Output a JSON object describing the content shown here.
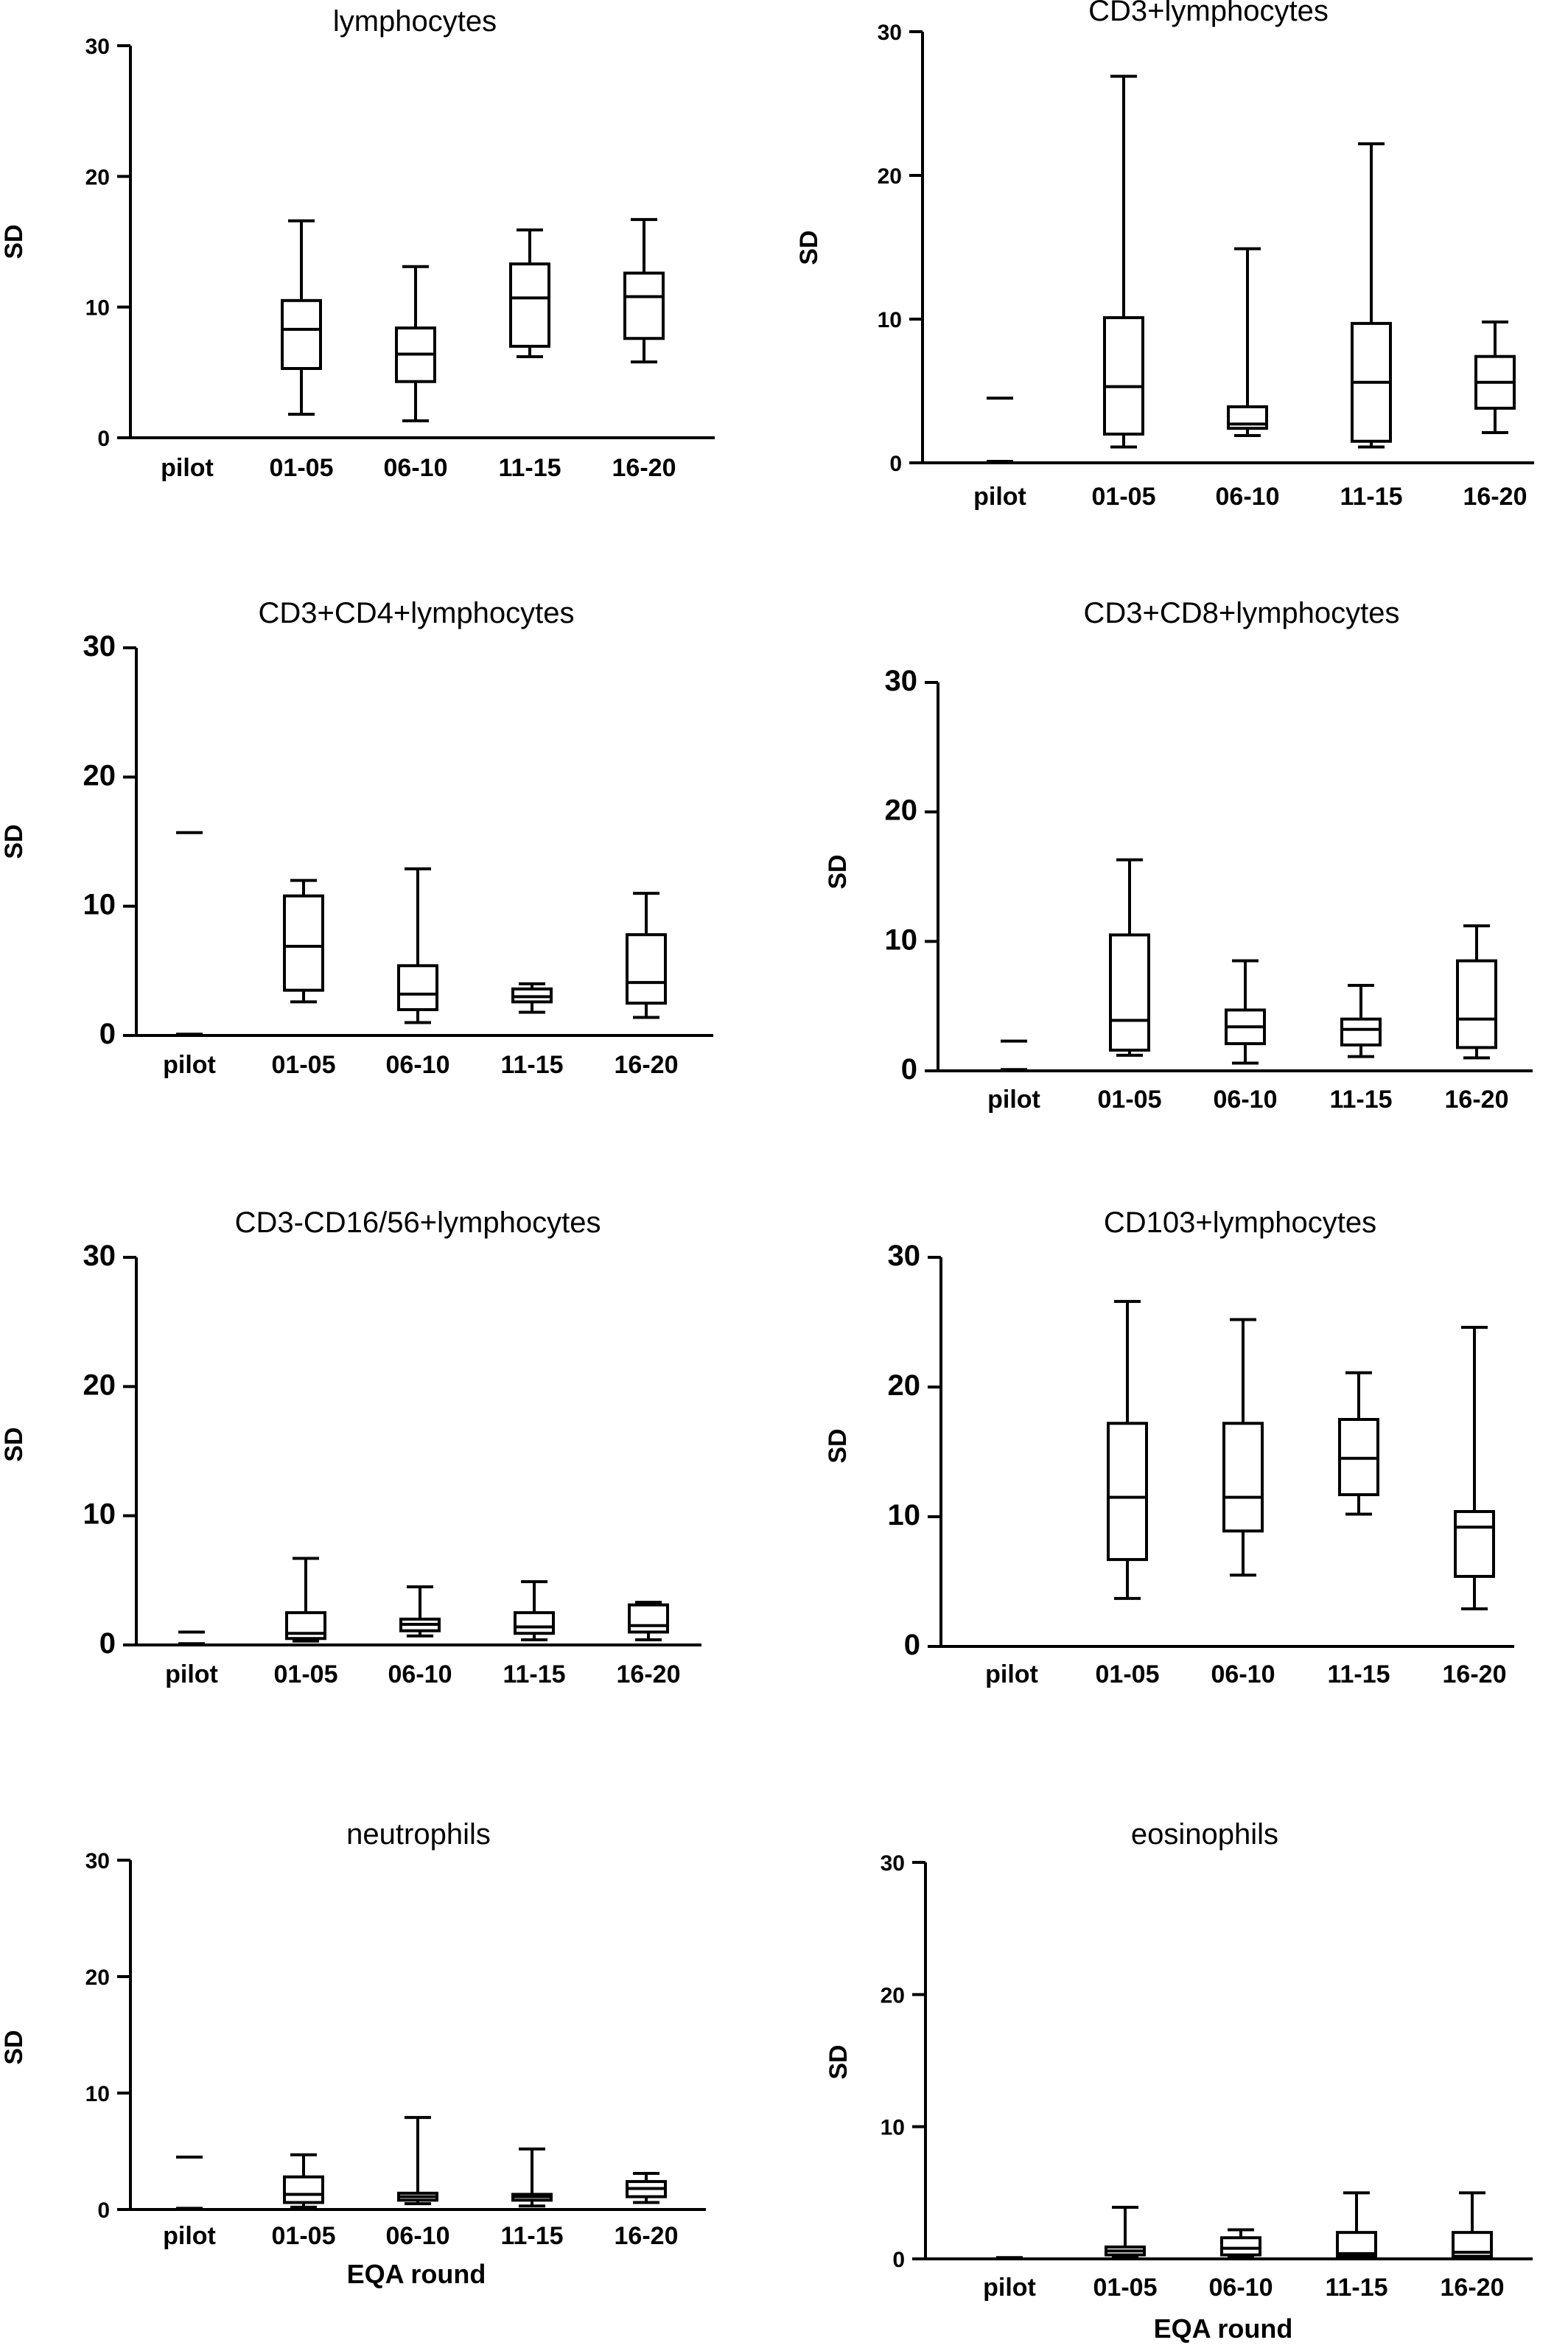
{
  "chart_data": [
    {
      "type": "box",
      "title": "lymphocytes",
      "ylabel": "SD",
      "xlabel": "",
      "ylim": [
        0,
        30
      ],
      "yticks": [
        "0",
        "10",
        "20",
        "30"
      ],
      "categories": [
        "pilot",
        "01-05",
        "06-10",
        "11-15",
        "16-20"
      ],
      "boxes": [
        null,
        {
          "min": 1.8,
          "q1": 5.3,
          "median": 8.3,
          "q3": 10.5,
          "max": 16.6
        },
        {
          "min": 1.3,
          "q1": 4.3,
          "median": 6.4,
          "q3": 8.4,
          "max": 13.1
        },
        {
          "min": 6.2,
          "q1": 7.0,
          "median": 10.7,
          "q3": 13.3,
          "max": 15.9
        },
        {
          "min": 5.8,
          "q1": 7.6,
          "median": 10.8,
          "q3": 12.6,
          "max": 16.7
        }
      ]
    },
    {
      "type": "box",
      "title": "CD3+lymphocytes",
      "ylabel": "SD",
      "xlabel": "",
      "ylim": [
        0,
        30
      ],
      "yticks": [
        "0",
        "10",
        "20",
        "30"
      ],
      "categories": [
        "pilot",
        "01-05",
        "06-10",
        "11-15",
        "16-20"
      ],
      "boxes": [
        {
          "min": 0.1,
          "q1": 0.1,
          "median": 0.1,
          "q3": 4.5,
          "max": 4.5
        },
        {
          "min": 1.1,
          "q1": 2.0,
          "median": 5.3,
          "q3": 10.1,
          "max": 26.9
        },
        {
          "min": 1.9,
          "q1": 2.4,
          "median": 2.7,
          "q3": 3.9,
          "max": 14.9
        },
        {
          "min": 1.1,
          "q1": 1.5,
          "median": 5.6,
          "q3": 9.7,
          "max": 22.2
        },
        {
          "min": 2.1,
          "q1": 3.8,
          "median": 5.6,
          "q3": 7.4,
          "max": 9.8
        }
      ]
    },
    {
      "type": "box",
      "title": "CD3+CD4+lymphocytes",
      "ylabel": "SD",
      "xlabel": "",
      "ylim": [
        0,
        30
      ],
      "yticks": [
        "0",
        "10",
        "20",
        "30"
      ],
      "categories": [
        "pilot",
        "01-05",
        "06-10",
        "11-15",
        "16-20"
      ],
      "boxes": [
        {
          "min": 0.1,
          "q1": 0.1,
          "median": 0.1,
          "q3": 15.7,
          "max": 15.7
        },
        {
          "min": 2.6,
          "q1": 3.5,
          "median": 6.9,
          "q3": 10.8,
          "max": 12.0
        },
        {
          "min": 1.0,
          "q1": 2.0,
          "median": 3.2,
          "q3": 5.4,
          "max": 12.9
        },
        {
          "min": 1.8,
          "q1": 2.6,
          "median": 3.0,
          "q3": 3.6,
          "max": 4.0
        },
        {
          "min": 1.4,
          "q1": 2.5,
          "median": 4.1,
          "q3": 7.8,
          "max": 11.0
        }
      ]
    },
    {
      "type": "box",
      "title": "CD3+CD8+lymphocytes",
      "ylabel": "SD",
      "xlabel": "",
      "ylim": [
        0,
        30
      ],
      "yticks": [
        "0",
        "10",
        "20",
        "30"
      ],
      "categories": [
        "pilot",
        "01-05",
        "06-10",
        "11-15",
        "16-20"
      ],
      "boxes": [
        {
          "min": 0.1,
          "q1": 0.1,
          "median": 0.1,
          "q3": 2.3,
          "max": 2.3
        },
        {
          "min": 1.2,
          "q1": 1.6,
          "median": 3.9,
          "q3": 10.5,
          "max": 16.3
        },
        {
          "min": 0.6,
          "q1": 2.1,
          "median": 3.4,
          "q3": 4.7,
          "max": 8.5
        },
        {
          "min": 1.1,
          "q1": 2.0,
          "median": 3.2,
          "q3": 4.0,
          "max": 6.6
        },
        {
          "min": 1.0,
          "q1": 1.8,
          "median": 4.0,
          "q3": 8.5,
          "max": 11.2
        }
      ]
    },
    {
      "type": "box",
      "title": "CD3-CD16/56+lymphocytes",
      "ylabel": "SD",
      "xlabel": "",
      "ylim": [
        0,
        30
      ],
      "yticks": [
        "0",
        "10",
        "20",
        "30"
      ],
      "categories": [
        "pilot",
        "01-05",
        "06-10",
        "11-15",
        "16-20"
      ],
      "boxes": [
        {
          "min": 0.1,
          "q1": 0.1,
          "median": 0.1,
          "q3": 1.0,
          "max": 1.0
        },
        {
          "min": 0.3,
          "q1": 0.5,
          "median": 0.9,
          "q3": 2.5,
          "max": 6.7
        },
        {
          "min": 0.7,
          "q1": 1.1,
          "median": 1.6,
          "q3": 2.0,
          "max": 4.5
        },
        {
          "min": 0.4,
          "q1": 0.9,
          "median": 1.4,
          "q3": 2.5,
          "max": 4.9
        },
        {
          "min": 0.4,
          "q1": 1.0,
          "median": 1.5,
          "q3": 3.1,
          "max": 3.3
        }
      ]
    },
    {
      "type": "box",
      "title": "CD103+lymphocytes",
      "ylabel": "SD",
      "xlabel": "",
      "ylim": [
        0,
        30
      ],
      "yticks": [
        "0",
        "10",
        "20",
        "30"
      ],
      "categories": [
        "pilot",
        "01-05",
        "06-10",
        "11-15",
        "16-20"
      ],
      "boxes": [
        null,
        {
          "min": 3.7,
          "q1": 6.7,
          "median": 11.5,
          "q3": 17.2,
          "max": 26.6
        },
        {
          "min": 5.5,
          "q1": 8.9,
          "median": 11.5,
          "q3": 17.2,
          "max": 25.2
        },
        {
          "min": 10.2,
          "q1": 11.7,
          "median": 14.5,
          "q3": 17.5,
          "max": 21.1
        },
        {
          "min": 2.9,
          "q1": 5.4,
          "median": 9.2,
          "q3": 10.4,
          "max": 24.6
        }
      ]
    },
    {
      "type": "box",
      "title": "neutrophils",
      "ylabel": "SD",
      "xlabel": "EQA round",
      "ylim": [
        0,
        30
      ],
      "yticks": [
        "0",
        "10",
        "20",
        "30"
      ],
      "categories": [
        "pilot",
        "01-05",
        "06-10",
        "11-15",
        "16-20"
      ],
      "boxes": [
        {
          "min": 0.1,
          "q1": 0.1,
          "median": 0.1,
          "q3": 4.5,
          "max": 4.5
        },
        {
          "min": 0.2,
          "q1": 0.6,
          "median": 1.3,
          "q3": 2.8,
          "max": 4.7
        },
        {
          "min": 0.5,
          "q1": 0.8,
          "median": 1.1,
          "q3": 1.4,
          "max": 7.9
        },
        {
          "min": 0.3,
          "q1": 0.8,
          "median": 1.1,
          "q3": 1.3,
          "max": 5.2
        },
        {
          "min": 0.6,
          "q1": 1.1,
          "median": 1.8,
          "q3": 2.4,
          "max": 3.1
        }
      ]
    },
    {
      "type": "box",
      "title": "eosinophils",
      "ylabel": "SD",
      "xlabel": "EQA round",
      "ylim": [
        0,
        30
      ],
      "yticks": [
        "0",
        "10",
        "20",
        "30"
      ],
      "categories": [
        "pilot",
        "01-05",
        "06-10",
        "11-15",
        "16-20"
      ],
      "boxes": [
        {
          "min": 0.1,
          "q1": 0.1,
          "median": 0.1,
          "q3": 0.1,
          "max": 0.1
        },
        {
          "min": 0.1,
          "q1": 0.3,
          "median": 0.6,
          "q3": 0.9,
          "max": 3.9
        },
        {
          "min": 0.1,
          "q1": 0.3,
          "median": 0.8,
          "q3": 1.6,
          "max": 2.2
        },
        {
          "min": 0.1,
          "q1": 0.2,
          "median": 0.4,
          "q3": 2.0,
          "max": 5.0
        },
        {
          "min": 0.1,
          "q1": 0.2,
          "median": 0.5,
          "q3": 2.0,
          "max": 5.0
        }
      ]
    }
  ]
}
